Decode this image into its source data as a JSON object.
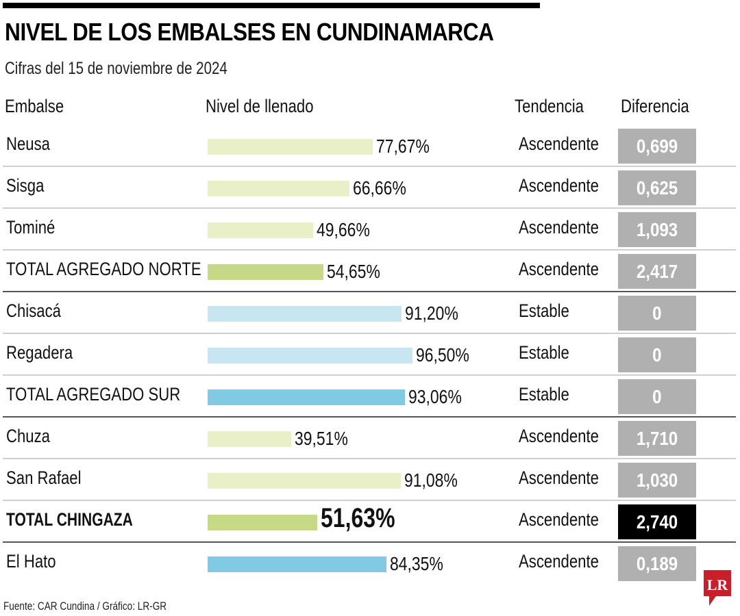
{
  "header": {
    "title": "NIVEL DE LOS EMBALSES EN CUNDINAMARCA",
    "subtitle": "Cifras del 15 de noviembre de 2024"
  },
  "columns": {
    "embalse": "Embalse",
    "nivel": "Nivel de llenado",
    "tendencia": "Tendencia",
    "diferencia": "Diferencia"
  },
  "colors": {
    "norte_light": "#e9efc6",
    "norte_total": "#c5d986",
    "sur_light": "#c8e6f1",
    "sur_total": "#80cbe3",
    "hato": "#80cbe3",
    "diff_box": "#b0b0b0",
    "diff_highlight": "#000000",
    "logo_red": "#c8202a"
  },
  "rows": [
    {
      "name": "Neusa",
      "value": 77.67,
      "label": "77,67%",
      "trend": "Ascendente",
      "diff": "0,699",
      "style": "norte_light",
      "bold": false,
      "big": false,
      "highlight": false,
      "group_end": false
    },
    {
      "name": "Sisga",
      "value": 66.66,
      "label": "66,66%",
      "trend": "Ascendente",
      "diff": "0,625",
      "style": "norte_light",
      "bold": false,
      "big": false,
      "highlight": false,
      "group_end": false
    },
    {
      "name": "Tominé",
      "value": 49.66,
      "label": "49,66%",
      "trend": "Ascendente",
      "diff": "1,093",
      "style": "norte_light",
      "bold": false,
      "big": false,
      "highlight": false,
      "group_end": false
    },
    {
      "name": "TOTAL AGREGADO NORTE",
      "value": 54.65,
      "label": "54,65%",
      "trend": "Ascendente",
      "diff": "2,417",
      "style": "norte_total",
      "bold": false,
      "big": false,
      "highlight": false,
      "group_end": true
    },
    {
      "name": "Chisacá",
      "value": 91.2,
      "label": "91,20%",
      "trend": "Estable",
      "diff": "0",
      "style": "sur_light",
      "bold": false,
      "big": false,
      "highlight": false,
      "group_end": false
    },
    {
      "name": "Regadera",
      "value": 96.5,
      "label": "96,50%",
      "trend": "Estable",
      "diff": "0",
      "style": "sur_light",
      "bold": false,
      "big": false,
      "highlight": false,
      "group_end": false
    },
    {
      "name": "TOTAL AGREGADO SUR",
      "value": 93.06,
      "label": "93,06%",
      "trend": "Estable",
      "diff": "0",
      "style": "sur_total",
      "bold": false,
      "big": false,
      "highlight": false,
      "group_end": true
    },
    {
      "name": "Chuza",
      "value": 39.51,
      "label": "39,51%",
      "trend": "Ascendente",
      "diff": "1,710",
      "style": "norte_light",
      "bold": false,
      "big": false,
      "highlight": false,
      "group_end": false
    },
    {
      "name": "San Rafael",
      "value": 91.08,
      "label": "91,08%",
      "trend": "Ascendente",
      "diff": "1,030",
      "style": "norte_light",
      "bold": false,
      "big": false,
      "highlight": false,
      "group_end": false
    },
    {
      "name": "TOTAL CHINGAZA",
      "value": 51.63,
      "label": "51,63%",
      "trend": "Ascendente",
      "diff": "2,740",
      "style": "norte_total",
      "bold": true,
      "big": true,
      "highlight": true,
      "group_end": true
    },
    {
      "name": "El Hato",
      "value": 84.35,
      "label": "84,35%",
      "trend": "Ascendente",
      "diff": "0,189",
      "style": "hato",
      "bold": false,
      "big": false,
      "highlight": false,
      "group_end": false
    }
  ],
  "footer": {
    "source": "Fuente: CAR Cundina / Gráfico: LR-GR",
    "logo_text": "LR"
  },
  "chart_data": {
    "type": "bar",
    "orientation": "horizontal",
    "title": "NIVEL DE LOS EMBALSES EN CUNDINAMARCA",
    "subtitle": "Cifras del 15 de noviembre de 2024",
    "xlabel": "Nivel de llenado",
    "ylabel": "Embalse",
    "unit": "%",
    "xlim": [
      0,
      100
    ],
    "grid": false,
    "legend": "none",
    "categories": [
      "Neusa",
      "Sisga",
      "Tominé",
      "TOTAL AGREGADO NORTE",
      "Chisacá",
      "Regadera",
      "TOTAL AGREGADO SUR",
      "Chuza",
      "San Rafael",
      "TOTAL CHINGAZA",
      "El Hato"
    ],
    "values": [
      77.67,
      66.66,
      49.66,
      54.65,
      91.2,
      96.5,
      93.06,
      39.51,
      91.08,
      51.63,
      84.35
    ],
    "tendencia": [
      "Ascendente",
      "Ascendente",
      "Ascendente",
      "Ascendente",
      "Estable",
      "Estable",
      "Estable",
      "Ascendente",
      "Ascendente",
      "Ascendente",
      "Ascendente"
    ],
    "diferencia": [
      0.699,
      0.625,
      1.093,
      2.417,
      0,
      0,
      0,
      1.71,
      1.03,
      2.74,
      0.189
    ],
    "source": "Fuente: CAR Cundina / Gráfico: LR-GR"
  }
}
